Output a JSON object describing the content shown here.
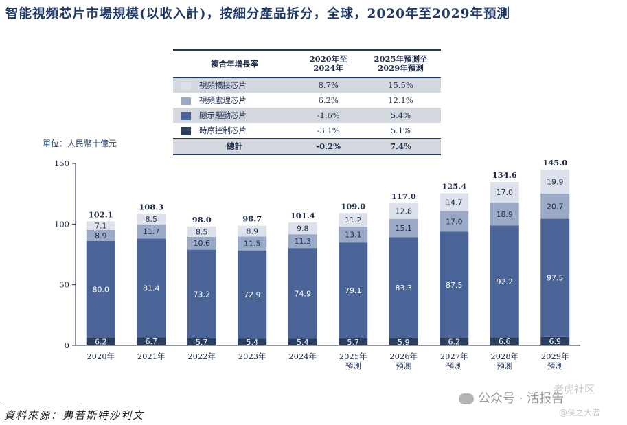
{
  "title": "智能視頻芯片市場規模(以收入計)，按細分產品拆分，全球，2020年至2029年預測",
  "unit_label": "單位：人民幣十億元",
  "cagr_table": {
    "headers": [
      "複合年增長率",
      "2020年至2024年",
      "2025年預測至\n2029年預測"
    ],
    "rows": [
      {
        "name": "視頻橋接芯片",
        "c1": "8.7%",
        "c2": "15.5%",
        "color": "#dce1ec"
      },
      {
        "name": "視頻處理芯片",
        "c1": "6.2%",
        "c2": "12.1%",
        "color": "#9aa9c6"
      },
      {
        "name": "顯示驅動芯片",
        "c1": "-1.6%",
        "c2": "5.4%",
        "color": "#4a6497"
      },
      {
        "name": "時序控制芯片",
        "c1": "-3.1%",
        "c2": "5.1%",
        "color": "#2c3e5e"
      }
    ],
    "total": {
      "name": "總計",
      "c1": "-0.2%",
      "c2": "7.4%"
    }
  },
  "chart_data": {
    "type": "bar",
    "stacked": true,
    "categories": [
      "2020年",
      "2021年",
      "2022年",
      "2023年",
      "2024年",
      "2025年\n預測",
      "2026年\n預測",
      "2027年\n預測",
      "2028年\n預測",
      "2029年\n預測"
    ],
    "series": [
      {
        "name": "時序控制芯片",
        "color": "#2c3e5e",
        "label_color": "#ffffff",
        "values": [
          6.2,
          6.7,
          5.7,
          5.4,
          5.4,
          5.7,
          5.9,
          6.2,
          6.6,
          6.9
        ]
      },
      {
        "name": "顯示驅動芯片",
        "color": "#4a6497",
        "label_color": "#ffffff",
        "values": [
          80.0,
          81.4,
          73.2,
          72.9,
          74.9,
          79.1,
          83.3,
          87.5,
          92.2,
          97.5
        ]
      },
      {
        "name": "視頻處理芯片",
        "color": "#9aa9c6",
        "label_color": "#1f2d4d",
        "values": [
          8.9,
          11.7,
          10.6,
          11.5,
          11.3,
          13.1,
          15.1,
          17.0,
          18.9,
          20.7
        ]
      },
      {
        "name": "視頻橋接芯片",
        "color": "#dce1ec",
        "label_color": "#1f2d4d",
        "values": [
          7.1,
          8.5,
          8.5,
          8.9,
          9.8,
          11.2,
          12.8,
          14.7,
          17.0,
          19.9
        ]
      }
    ],
    "totals": [
      102.1,
      108.3,
      98.0,
      98.7,
      101.4,
      109.0,
      117.0,
      125.4,
      134.6,
      145.0
    ],
    "y_ticks": [
      0,
      50,
      100,
      150
    ],
    "ylim": [
      0,
      150
    ],
    "xlabel": "",
    "ylabel": ""
  },
  "source": "資料來源：弗若斯特沙利文",
  "watermark": {
    "channel": "公众号 · 活报告",
    "community": "老虎社区",
    "author": "@侯之大者"
  }
}
